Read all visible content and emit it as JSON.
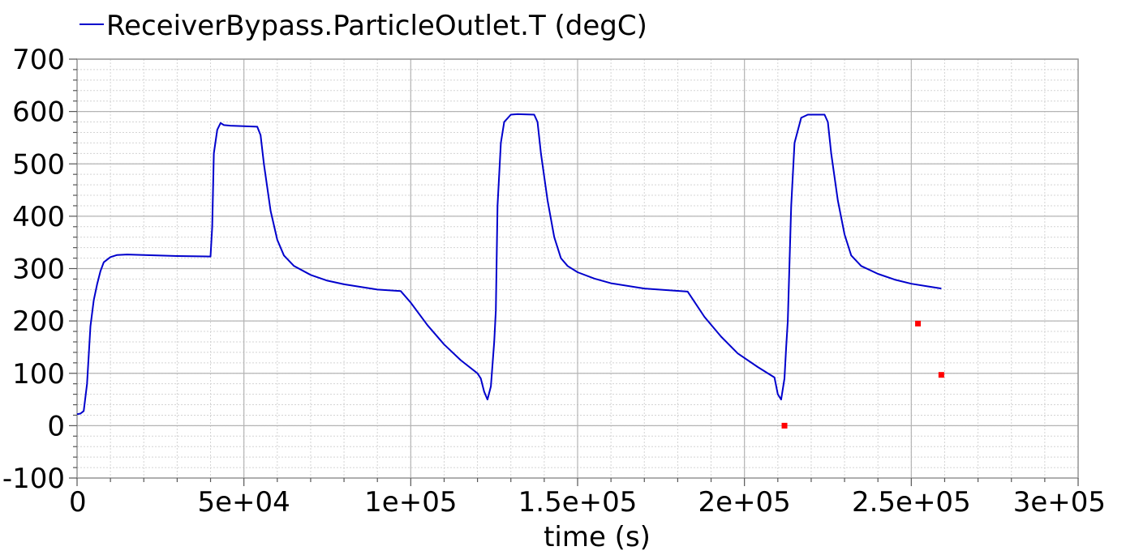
{
  "chart_data": {
    "type": "line",
    "title": "",
    "xlabel": "time (s)",
    "ylabel": "",
    "xlim": [
      0,
      300000
    ],
    "ylim": [
      -100,
      700
    ],
    "x_ticks": [
      0,
      50000,
      100000,
      150000,
      200000,
      250000,
      300000
    ],
    "x_tick_labels": [
      "0",
      "5e+04",
      "1e+05",
      "1.5e+05",
      "2e+05",
      "2.5e+05",
      "3e+05"
    ],
    "y_ticks": [
      -100,
      0,
      100,
      200,
      300,
      400,
      500,
      600,
      700
    ],
    "y_tick_labels": [
      "-100",
      "0",
      "100",
      "200",
      "300",
      "400",
      "500",
      "600",
      "700"
    ],
    "grid": true,
    "legend_position": "top-left",
    "series": [
      {
        "name": "ReceiverBypass.ParticleOutlet.T (degC)",
        "color": "#0000cc",
        "x": [
          0,
          1000,
          2000,
          3000,
          4000,
          5000,
          6000,
          7000,
          8000,
          10000,
          12000,
          15000,
          20000,
          30000,
          40000,
          40500,
          41000,
          42000,
          43000,
          44000,
          46000,
          50000,
          54000,
          55000,
          56000,
          58000,
          60000,
          62000,
          65000,
          70000,
          75000,
          80000,
          85000,
          90000,
          97000,
          100000,
          105000,
          110000,
          115000,
          120000,
          121000,
          122000,
          123000,
          124000,
          125000,
          125500,
          126000,
          127000,
          128000,
          130000,
          132000,
          137000,
          138000,
          139000,
          141000,
          143000,
          145000,
          147000,
          150000,
          155000,
          160000,
          170000,
          183000,
          188000,
          193000,
          198000,
          204000,
          209000,
          210000,
          211000,
          212000,
          212500,
          213000,
          214000,
          215000,
          217000,
          219000,
          224000,
          225000,
          226000,
          228000,
          230000,
          232000,
          235000,
          240000,
          245000,
          250000,
          255000,
          259000
        ],
        "y": [
          22,
          23,
          28,
          80,
          190,
          240,
          270,
          295,
          312,
          322,
          326,
          327,
          326,
          324,
          323,
          380,
          520,
          565,
          578,
          574,
          573,
          572,
          571,
          555,
          500,
          410,
          355,
          325,
          305,
          288,
          277,
          270,
          265,
          260,
          257,
          235,
          192,
          155,
          125,
          100,
          90,
          65,
          50,
          75,
          160,
          220,
          420,
          540,
          580,
          594,
          595,
          594,
          580,
          520,
          430,
          360,
          320,
          305,
          293,
          281,
          272,
          262,
          256,
          208,
          170,
          138,
          112,
          92,
          60,
          50,
          90,
          150,
          200,
          420,
          540,
          588,
          594,
          594,
          580,
          520,
          430,
          365,
          325,
          305,
          290,
          279,
          271,
          266,
          262
        ]
      }
    ],
    "extra_markers": [
      {
        "x": 212000,
        "y": 0,
        "color": "#ff0000"
      },
      {
        "x": 252000,
        "y": 195,
        "color": "#ff0000"
      },
      {
        "x": 259000,
        "y": 97,
        "color": "#ff0000"
      }
    ]
  }
}
